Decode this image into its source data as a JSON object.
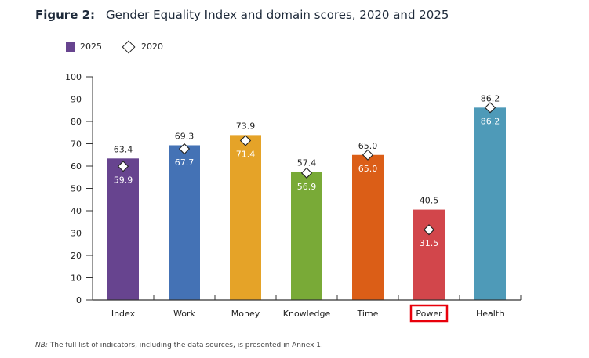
{
  "title_prefix": "Figure 2:",
  "chart_data": {
    "type": "bar",
    "title": "Gender Equality Index and domain scores, 2020 and 2025",
    "categories": [
      "Index",
      "Work",
      "Money",
      "Knowledge",
      "Time",
      "Power",
      "Health"
    ],
    "series": [
      {
        "name": "2025",
        "kind": "bar",
        "values": [
          63.4,
          69.3,
          73.9,
          57.4,
          65.0,
          40.5,
          86.2
        ]
      },
      {
        "name": "2020",
        "kind": "marker-diamond",
        "values": [
          59.9,
          67.7,
          71.4,
          56.9,
          65.0,
          31.5,
          86.2
        ]
      }
    ],
    "colors": [
      "#67448f",
      "#4472b5",
      "#e5a328",
      "#79aa37",
      "#db5e17",
      "#d2464b",
      "#4e9ab8"
    ],
    "legend_color": "#67448f",
    "ylim": [
      0,
      100
    ],
    "yticks": [
      0,
      10,
      20,
      30,
      40,
      50,
      60,
      70,
      80,
      90,
      100
    ],
    "xlabel": "",
    "ylabel": "",
    "legend_position": "top-left",
    "highlighted_category": "Power",
    "highlight_color": "#e8000b"
  },
  "note_prefix": "NB:",
  "note_text": " The full list of indicators, including the data sources, is presented in Annex 1."
}
